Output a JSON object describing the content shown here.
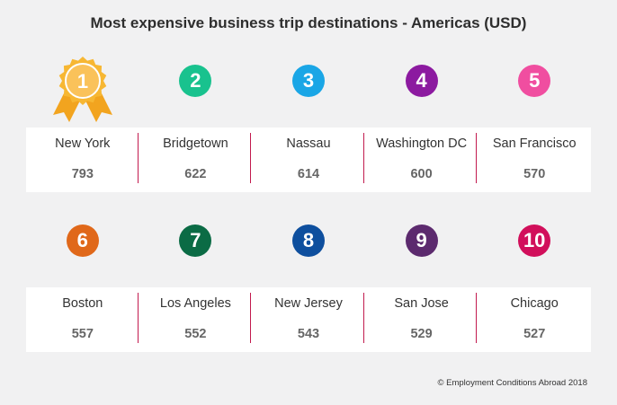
{
  "chart_data": {
    "type": "table",
    "title": "Most expensive business trip destinations - Americas (USD)",
    "entries": [
      {
        "rank": "1",
        "city": "New York",
        "value": 793
      },
      {
        "rank": "2",
        "city": "Bridgetown",
        "value": 622
      },
      {
        "rank": "3",
        "city": "Nassau",
        "value": 614
      },
      {
        "rank": "4",
        "city": "Washington DC",
        "value": 600
      },
      {
        "rank": "5",
        "city": "San Francisco",
        "value": 570
      },
      {
        "rank": "6",
        "city": "Boston",
        "value": 557
      },
      {
        "rank": "7",
        "city": "Los Angeles",
        "value": 552
      },
      {
        "rank": "8",
        "city": "New Jersey",
        "value": 543
      },
      {
        "rank": "9",
        "city": "San Jose",
        "value": 529
      },
      {
        "rank": "10",
        "city": "Chicago",
        "value": 527
      }
    ]
  },
  "colors": {
    "gold": "#f7b733",
    "divider": "#c21a4e",
    "badges": [
      "#f7b733",
      "#19c28e",
      "#1aa6e6",
      "#8c1aa0",
      "#f04ea0",
      "#e0681a",
      "#0b6b45",
      "#0e4f9e",
      "#5c2a6e",
      "#d10f5b"
    ]
  },
  "icons": {
    "rank1": "award-rosette-icon"
  },
  "footer": "© Employment Conditions Abroad 2018"
}
